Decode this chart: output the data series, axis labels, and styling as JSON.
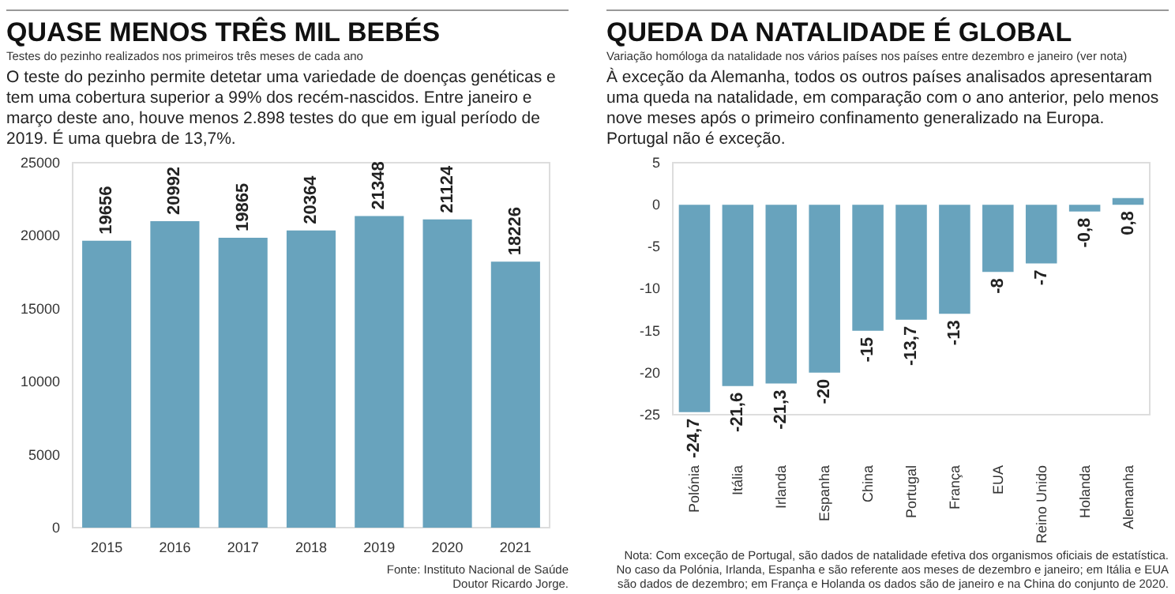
{
  "chart_data": [
    {
      "type": "bar",
      "title": "QUASE MENOS TRÊS MIL BEBÉS",
      "subtitle": "Testes do pezinho realizados nos primeiros três meses de cada ano",
      "annotations": [
        "O teste do pezinho permite detetar uma variedade de doenças genéticas e tem uma cobertura superior a 99% dos recém-nascidos. Entre janeiro e março deste ano, houve menos 2.898 testes do que em igual período de 2019. É uma quebra de 13,7%.",
        "Fonte: Instituto Nacional de Saúde Doutor Ricardo Jorge."
      ],
      "categories": [
        "2015",
        "2016",
        "2017",
        "2018",
        "2019",
        "2020",
        "2021"
      ],
      "values": [
        19656,
        20992,
        19865,
        20364,
        21348,
        21124,
        18226
      ],
      "color": "#68a3bd",
      "data_labels": true,
      "ylim": [
        0,
        25000
      ],
      "yticks": [
        0,
        5000,
        10000,
        15000,
        20000,
        25000
      ],
      "grid": false
    },
    {
      "type": "bar",
      "title": "QUEDA DA NATALIDADE É GLOBAL",
      "subtitle": "Variação homóloga da natalidade nos vários países nos países entre dezembro e janeiro (ver nota)",
      "annotations": [
        "À exceção da Alemanha, todos os outros países analisados apresentaram uma queda na natalidade, em comparação com o ano anterior, pelo menos nove meses após o primeiro confinamento generalizado na Europa. Portugal não é exceção.",
        "Nota: Com exceção de Portugal, são dados de natalidade efetiva dos organismos oficiais de estatística. No caso da Polónia, Irlanda, Espanha e são referente aos meses de dezembro e janeiro; em Itália e EUA são dados de dezembro; em França e Holanda os dados são de janeiro e na China do conjunto de 2020."
      ],
      "categories": [
        "Polónia",
        "Itália",
        "Irlanda",
        "Espanha",
        "China",
        "Portugal",
        "França",
        "EUA",
        "Reino Unido",
        "Holanda",
        "Alemanha"
      ],
      "values": [
        -24.7,
        -21.6,
        -21.3,
        -20,
        -15,
        -13.7,
        -13,
        -8,
        -7,
        -0.8,
        0.8
      ],
      "color": "#68a3bd",
      "value_labels": [
        "-24,7",
        "-21,6",
        "-21,3",
        "-20",
        "-15",
        "-13,7",
        "-13",
        "-8",
        "-7",
        "-0,8",
        "0,8"
      ],
      "ylim": [
        -25,
        5
      ],
      "yticks": [
        -25,
        -20,
        -15,
        -10,
        -5,
        0,
        5
      ],
      "grid": false
    }
  ]
}
